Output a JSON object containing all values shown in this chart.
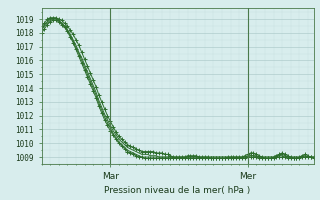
{
  "title": "Pression niveau de la mer( hPa )",
  "ylabel_values": [
    1009,
    1010,
    1011,
    1012,
    1013,
    1014,
    1015,
    1016,
    1017,
    1018,
    1019
  ],
  "ylim": [
    1008.5,
    1019.8
  ],
  "xlim": [
    0,
    95
  ],
  "xtick_positions": [
    24,
    72
  ],
  "xtick_labels": [
    "Mar",
    "Mer"
  ],
  "background_color": "#d8eded",
  "grid_color_major": "#b0cccc",
  "grid_color_minor": "#c8e0e0",
  "line_color": "#2d6e2d",
  "lines": [
    [
      1018.5,
      1018.7,
      1019.0,
      1019.1,
      1019.1,
      1019.1,
      1019.0,
      1018.9,
      1018.7,
      1018.5,
      1018.2,
      1017.9,
      1017.5,
      1017.1,
      1016.6,
      1016.1,
      1015.6,
      1015.1,
      1014.6,
      1014.1,
      1013.5,
      1013.0,
      1012.5,
      1012.0,
      1011.6,
      1011.2,
      1010.8,
      1010.5,
      1010.3,
      1010.1,
      1009.9,
      1009.8,
      1009.7,
      1009.6,
      1009.5,
      1009.4,
      1009.4,
      1009.4,
      1009.4,
      1009.4,
      1009.3,
      1009.3,
      1009.3,
      1009.2,
      1009.2,
      1009.1,
      1009.0,
      1009.0,
      1009.0,
      1009.0,
      1009.0,
      1009.1,
      1009.1,
      1009.1,
      1009.1,
      1009.0,
      1009.0,
      1009.0,
      1009.0,
      1008.9,
      1008.9,
      1008.9,
      1008.9,
      1008.9,
      1008.9,
      1009.0,
      1009.0,
      1009.0,
      1009.0,
      1009.0,
      1009.0,
      1009.1,
      1009.2,
      1009.3,
      1009.3,
      1009.2,
      1009.1,
      1009.0,
      1008.9,
      1008.9,
      1008.9,
      1009.0,
      1009.1,
      1009.2,
      1009.3,
      1009.2,
      1009.1,
      1009.0,
      1008.9,
      1008.9,
      1009.0,
      1009.1,
      1009.2,
      1009.1,
      1009.0,
      1008.9
    ],
    [
      1018.3,
      1018.6,
      1018.8,
      1019.0,
      1019.0,
      1019.0,
      1018.9,
      1018.7,
      1018.5,
      1018.2,
      1017.9,
      1017.5,
      1017.1,
      1016.6,
      1016.2,
      1015.7,
      1015.2,
      1014.7,
      1014.2,
      1013.7,
      1013.1,
      1012.6,
      1012.1,
      1011.7,
      1011.3,
      1010.9,
      1010.6,
      1010.3,
      1010.1,
      1009.9,
      1009.7,
      1009.6,
      1009.5,
      1009.4,
      1009.3,
      1009.2,
      1009.2,
      1009.2,
      1009.1,
      1009.1,
      1009.1,
      1009.0,
      1009.0,
      1009.0,
      1009.0,
      1009.0,
      1009.0,
      1009.0,
      1009.0,
      1009.0,
      1009.0,
      1009.0,
      1009.0,
      1009.0,
      1009.0,
      1009.0,
      1009.0,
      1009.0,
      1009.0,
      1009.0,
      1009.0,
      1009.0,
      1009.0,
      1009.0,
      1009.0,
      1009.0,
      1009.0,
      1009.0,
      1009.0,
      1009.0,
      1009.0,
      1009.0,
      1009.0,
      1009.1,
      1009.1,
      1009.0,
      1009.0,
      1009.0,
      1009.0,
      1009.0,
      1009.0,
      1009.0,
      1009.1,
      1009.1,
      1009.1,
      1009.0,
      1009.0,
      1009.0,
      1009.0,
      1009.0,
      1009.0,
      1009.0,
      1009.0,
      1009.0,
      1009.0,
      1009.0
    ],
    [
      1018.0,
      1018.3,
      1018.6,
      1018.8,
      1018.9,
      1018.9,
      1018.8,
      1018.6,
      1018.4,
      1018.1,
      1017.7,
      1017.3,
      1016.8,
      1016.3,
      1015.8,
      1015.3,
      1014.8,
      1014.3,
      1013.8,
      1013.3,
      1012.7,
      1012.2,
      1011.7,
      1011.3,
      1010.9,
      1010.6,
      1010.3,
      1010.0,
      1009.8,
      1009.6,
      1009.4,
      1009.3,
      1009.2,
      1009.1,
      1009.0,
      1009.0,
      1008.9,
      1008.9,
      1008.9,
      1008.9,
      1008.9,
      1008.9,
      1008.9,
      1008.9,
      1008.9,
      1008.9,
      1008.9,
      1008.9,
      1008.9,
      1008.9,
      1008.9,
      1008.9,
      1008.9,
      1008.9,
      1008.9,
      1008.9,
      1008.9,
      1008.9,
      1008.9,
      1008.9,
      1008.9,
      1008.9,
      1008.9,
      1008.9,
      1008.9,
      1008.9,
      1008.9,
      1008.9,
      1008.9,
      1008.9,
      1008.9,
      1008.9,
      1009.0,
      1009.0,
      1009.0,
      1009.0,
      1008.9,
      1008.9,
      1008.9,
      1008.9,
      1008.9,
      1008.9,
      1009.0,
      1009.0,
      1009.0,
      1009.0,
      1008.9,
      1008.9,
      1008.9,
      1008.9,
      1008.9,
      1009.0,
      1009.0,
      1009.0,
      1009.0,
      1009.0
    ],
    [
      1018.2,
      1018.5,
      1018.7,
      1018.9,
      1019.0,
      1019.0,
      1018.9,
      1018.7,
      1018.5,
      1018.2,
      1017.8,
      1017.4,
      1016.9,
      1016.5,
      1016.0,
      1015.5,
      1015.0,
      1014.5,
      1014.0,
      1013.5,
      1012.9,
      1012.4,
      1011.9,
      1011.5,
      1011.1,
      1010.7,
      1010.4,
      1010.1,
      1009.9,
      1009.7,
      1009.5,
      1009.4,
      1009.3,
      1009.2,
      1009.1,
      1009.0,
      1009.0,
      1009.0,
      1009.0,
      1009.0,
      1009.0,
      1009.0,
      1009.0,
      1009.0,
      1009.0,
      1009.0,
      1009.0,
      1009.0,
      1009.0,
      1009.0,
      1009.0,
      1009.0,
      1009.0,
      1009.0,
      1009.0,
      1009.0,
      1009.0,
      1009.0,
      1009.0,
      1009.0,
      1009.0,
      1009.0,
      1009.0,
      1009.0,
      1009.0,
      1009.0,
      1009.0,
      1009.0,
      1009.0,
      1009.0,
      1009.0,
      1009.0,
      1009.1,
      1009.1,
      1009.1,
      1009.1,
      1009.0,
      1009.0,
      1009.0,
      1009.0,
      1009.0,
      1009.0,
      1009.1,
      1009.1,
      1009.2,
      1009.1,
      1009.0,
      1009.0,
      1009.0,
      1009.0,
      1009.0,
      1009.1,
      1009.1,
      1009.0,
      1009.0,
      1009.0
    ]
  ],
  "marker_lines": [
    0,
    2
  ],
  "figsize": [
    3.2,
    2.0
  ],
  "dpi": 100
}
